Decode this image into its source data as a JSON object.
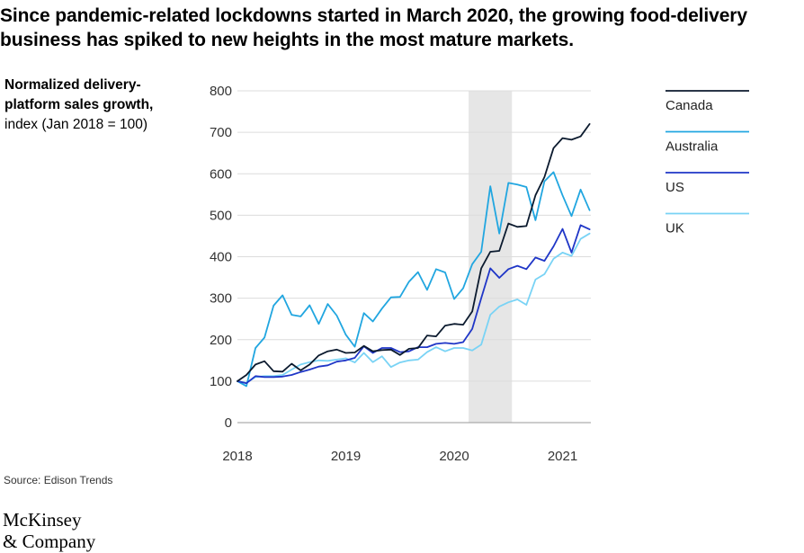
{
  "headline": "Since pandemic-related lockdowns started in March 2020, the growing food-delivery business has spiked to new heights in the most mature markets.",
  "ylabel": {
    "bold": "Normalized delivery-platform sales growth,",
    "rest": " index (Jan 2018 = 100)"
  },
  "source": "Source: Edison Trends",
  "logo": {
    "line1": "McKinsey",
    "line2": "& Company"
  },
  "colors": {
    "Canada": "#0b1a2e",
    "Australia": "#21a6e0",
    "US": "#1f36c7",
    "UK": "#79d3f5",
    "shade": "#e6e6e6",
    "grid": "#dcdcdc"
  },
  "chart_data": {
    "type": "line",
    "x_axis": {
      "ticks": [
        "2018",
        "2019",
        "2020",
        "2021"
      ],
      "range": [
        "2018-01",
        "2021-04"
      ]
    },
    "y_axis": {
      "ticks": [
        0,
        100,
        200,
        300,
        400,
        500,
        600,
        700,
        800
      ],
      "ylim": [
        0,
        800
      ]
    },
    "shaded_period": [
      "2020-03",
      "2020-07"
    ],
    "grid": true,
    "legend_position": "right",
    "x": [
      "2018-01",
      "2018-02",
      "2018-03",
      "2018-04",
      "2018-05",
      "2018-06",
      "2018-07",
      "2018-08",
      "2018-09",
      "2018-10",
      "2018-11",
      "2018-12",
      "2019-01",
      "2019-02",
      "2019-03",
      "2019-04",
      "2019-05",
      "2019-06",
      "2019-07",
      "2019-08",
      "2019-09",
      "2019-10",
      "2019-11",
      "2019-12",
      "2020-01",
      "2020-02",
      "2020-03",
      "2020-04",
      "2020-05",
      "2020-06",
      "2020-07",
      "2020-08",
      "2020-09",
      "2020-10",
      "2020-11",
      "2020-12",
      "2021-01",
      "2021-02",
      "2021-03",
      "2021-04"
    ],
    "series": [
      {
        "name": "Canada",
        "values": [
          100,
          115,
          140,
          148,
          124,
          123,
          142,
          126,
          140,
          162,
          172,
          176,
          168,
          169,
          185,
          172,
          175,
          176,
          163,
          178,
          180,
          210,
          208,
          234,
          238,
          236,
          268,
          372,
          412,
          414,
          480,
          472,
          474,
          548,
          592,
          662,
          686,
          682,
          690,
          720
        ]
      },
      {
        "name": "Australia",
        "values": [
          100,
          88,
          180,
          205,
          282,
          307,
          260,
          256,
          283,
          238,
          286,
          258,
          212,
          183,
          264,
          244,
          275,
          302,
          303,
          340,
          363,
          320,
          370,
          362,
          298,
          324,
          382,
          412,
          570,
          456,
          578,
          574,
          568,
          488,
          582,
          604,
          548,
          498,
          562,
          512
        ]
      },
      {
        "name": "US",
        "values": [
          100,
          95,
          112,
          110,
          110,
          111,
          115,
          122,
          128,
          135,
          138,
          147,
          150,
          156,
          184,
          168,
          180,
          180,
          170,
          172,
          182,
          182,
          190,
          192,
          190,
          194,
          226,
          300,
          372,
          349,
          370,
          378,
          370,
          398,
          390,
          425,
          467,
          410,
          476,
          466
        ]
      },
      {
        "name": "UK",
        "values": [
          100,
          96,
          110,
          112,
          112,
          115,
          128,
          140,
          146,
          150,
          149,
          152,
          155,
          145,
          168,
          146,
          160,
          134,
          145,
          150,
          152,
          170,
          182,
          172,
          180,
          180,
          174,
          188,
          260,
          280,
          290,
          297,
          284,
          345,
          358,
          395,
          410,
          402,
          443,
          456
        ]
      }
    ]
  }
}
